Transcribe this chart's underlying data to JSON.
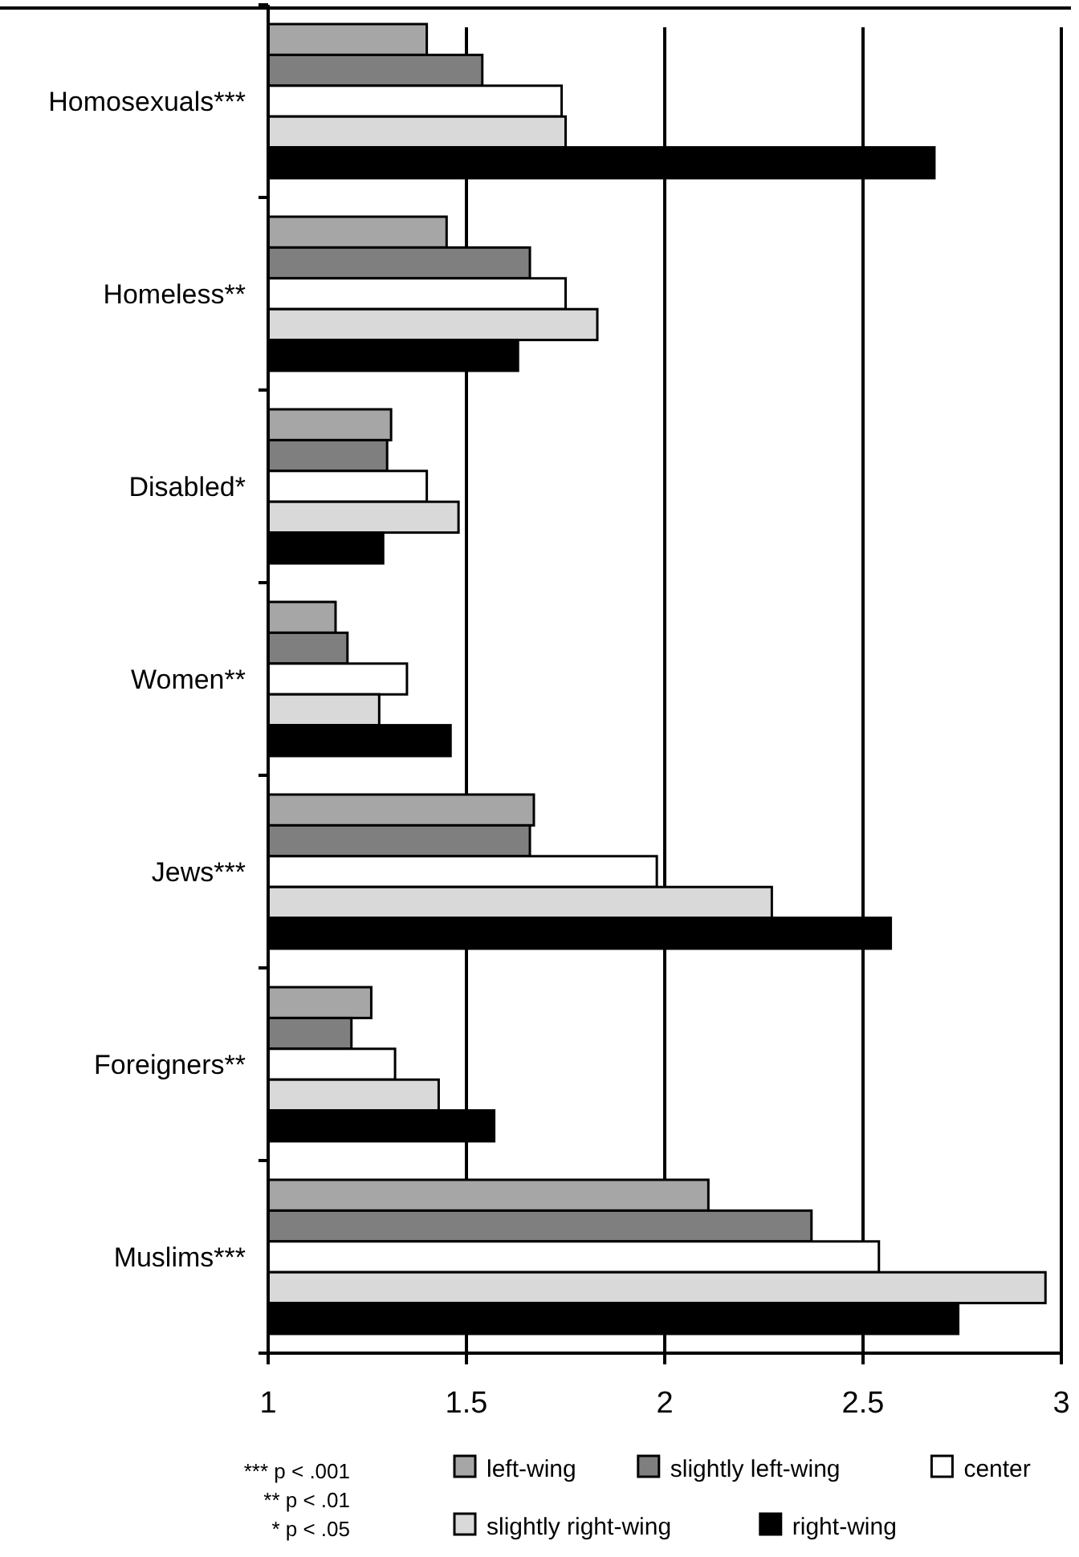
{
  "chart_data": {
    "type": "bar",
    "orientation": "horizontal",
    "categories": [
      "Homosexuals***",
      "Homeless**",
      "Disabled*",
      "Women**",
      "Jews***",
      "Foreigners**",
      "Muslims***"
    ],
    "series": [
      {
        "name": "left-wing",
        "color": "#a6a6a6",
        "values": [
          1.4,
          1.45,
          1.31,
          1.17,
          1.67,
          1.26,
          2.11
        ]
      },
      {
        "name": "slightly left-wing",
        "color": "#7f7f7f",
        "values": [
          1.54,
          1.66,
          1.3,
          1.2,
          1.66,
          1.21,
          2.37
        ]
      },
      {
        "name": "center",
        "color": "#ffffff",
        "values": [
          1.74,
          1.75,
          1.4,
          1.35,
          1.98,
          1.32,
          2.54
        ]
      },
      {
        "name": "slightly right-wing",
        "color": "#d9d9d9",
        "values": [
          1.75,
          1.83,
          1.48,
          1.28,
          2.27,
          1.43,
          2.96
        ]
      },
      {
        "name": "right-wing",
        "color": "#000000",
        "values": [
          2.68,
          1.63,
          1.29,
          1.46,
          2.57,
          1.57,
          2.74
        ]
      }
    ],
    "xlim": [
      1,
      3
    ],
    "xticks": [
      1,
      1.5,
      2,
      2.5,
      3
    ],
    "grid": "x",
    "legend": "bottom",
    "annotations": [
      "*** p < .001",
      "** p < .01",
      "* p < .05"
    ]
  }
}
